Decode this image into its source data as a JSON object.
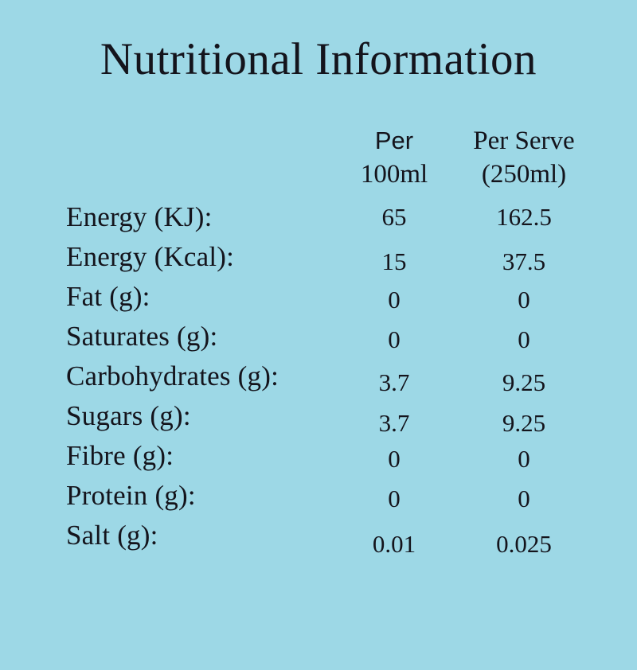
{
  "theme": {
    "background": "#9DD8E6",
    "text": "#14141C"
  },
  "title": "Nutritional Information",
  "table": {
    "columns": [
      {
        "line1": "Per",
        "line2": "100ml"
      },
      {
        "line1": "Per Serve",
        "line2": "(250ml)"
      }
    ],
    "rows": [
      {
        "label": "Energy (KJ):",
        "per_100ml": "65",
        "per_serve": "162.5"
      },
      {
        "label": "Energy (Kcal):",
        "per_100ml": "15",
        "per_serve": "37.5"
      },
      {
        "label": "Fat (g):",
        "per_100ml": "0",
        "per_serve": "0"
      },
      {
        "label": "Saturates (g):",
        "per_100ml": "0",
        "per_serve": "0"
      },
      {
        "label": "Carbohydrates (g):",
        "per_100ml": "3.7",
        "per_serve": "9.25"
      },
      {
        "label": "Sugars (g):",
        "per_100ml": "3.7",
        "per_serve": "9.25"
      },
      {
        "label": "Fibre (g):",
        "per_100ml": "0",
        "per_serve": "0"
      },
      {
        "label": "Protein (g):",
        "per_100ml": "0",
        "per_serve": "0"
      },
      {
        "label": "Salt (g):",
        "per_100ml": "0.01",
        "per_serve": "0.025"
      }
    ]
  }
}
